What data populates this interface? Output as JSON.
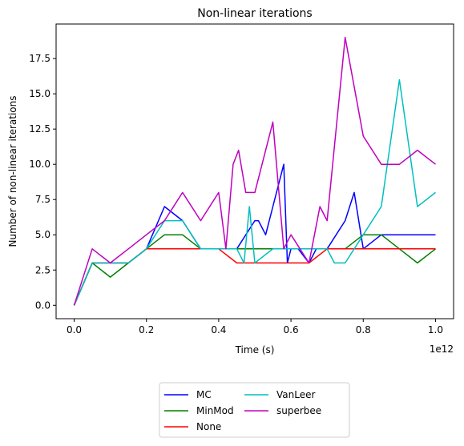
{
  "chart_data": {
    "type": "line",
    "title": "Non-linear iterations",
    "xlabel": "Time (s)",
    "ylabel": "Number of non-linear iterations",
    "x_offset_label": "1e12",
    "xlim": [
      -0.05,
      1.05
    ],
    "ylim": [
      -0.95,
      19.95
    ],
    "x_ticks": [
      0.0,
      0.2,
      0.4,
      0.6,
      0.8,
      1.0
    ],
    "x_tick_labels": [
      "0.0",
      "0.2",
      "0.4",
      "0.6",
      "0.8",
      "1.0"
    ],
    "y_ticks": [
      0,
      2.5,
      5,
      7.5,
      10,
      12.5,
      15,
      17.5
    ],
    "y_tick_labels": [
      "0.0",
      "2.5",
      "5.0",
      "7.5",
      "10.0",
      "12.5",
      "15.0",
      "17.5"
    ],
    "grid": false,
    "legend": {
      "placement": "below",
      "columns": 2
    },
    "series": [
      {
        "name": "MC",
        "color": "#0000ff",
        "x": [
          0,
          0.05,
          0.1,
          0.15,
          0.2,
          0.25,
          0.3,
          0.35,
          0.4,
          0.45,
          0.5,
          0.51,
          0.53,
          0.55,
          0.58,
          0.59,
          0.6,
          0.62,
          0.65,
          0.67,
          0.7,
          0.75,
          0.775,
          0.8,
          0.85,
          0.9,
          0.95,
          1.0
        ],
        "y": [
          0,
          3,
          3,
          3,
          4,
          7,
          6,
          4,
          4,
          4,
          6,
          6,
          5,
          7,
          10,
          3,
          4,
          4,
          3,
          4,
          4,
          6,
          8,
          4,
          5,
          5,
          5,
          5
        ]
      },
      {
        "name": "MinMod",
        "color": "#008000",
        "x": [
          0,
          0.05,
          0.1,
          0.15,
          0.2,
          0.25,
          0.3,
          0.35,
          0.4,
          0.45,
          0.5,
          0.55,
          0.6,
          0.65,
          0.7,
          0.75,
          0.8,
          0.85,
          0.9,
          0.95,
          1.0
        ],
        "y": [
          0,
          3,
          2,
          3,
          4,
          5,
          5,
          4,
          4,
          4,
          4,
          4,
          4,
          4,
          4,
          4,
          5,
          5,
          4,
          3,
          4
        ]
      },
      {
        "name": "None",
        "color": "#ff0000",
        "x": [
          0,
          0.05,
          0.1,
          0.15,
          0.2,
          0.25,
          0.3,
          0.35,
          0.4,
          0.45,
          0.5,
          0.55,
          0.6,
          0.65,
          0.7,
          0.75,
          0.8,
          0.85,
          0.9,
          0.95,
          1.0
        ],
        "y": [
          0,
          3,
          3,
          3,
          4,
          4,
          4,
          4,
          4,
          3,
          3,
          3,
          3,
          3,
          4,
          4,
          4,
          4,
          4,
          4,
          4
        ]
      },
      {
        "name": "VanLeer",
        "color": "#00bfbf",
        "x": [
          0,
          0.05,
          0.1,
          0.15,
          0.2,
          0.25,
          0.28,
          0.3,
          0.35,
          0.4,
          0.45,
          0.47,
          0.485,
          0.5,
          0.55,
          0.6,
          0.65,
          0.7,
          0.72,
          0.75,
          0.8,
          0.85,
          0.9,
          0.95,
          1.0
        ],
        "y": [
          0,
          3,
          3,
          3,
          4,
          6,
          6,
          6,
          4,
          4,
          4,
          3,
          7,
          3,
          4,
          4,
          4,
          4,
          3,
          3,
          5,
          7,
          16,
          7,
          8
        ]
      },
      {
        "name": "superbee",
        "color": "#bf00bf",
        "x": [
          0,
          0.05,
          0.1,
          0.15,
          0.2,
          0.25,
          0.3,
          0.35,
          0.4,
          0.42,
          0.44,
          0.455,
          0.475,
          0.5,
          0.55,
          0.58,
          0.6,
          0.65,
          0.68,
          0.7,
          0.75,
          0.8,
          0.85,
          0.9,
          0.95,
          1.0
        ],
        "y": [
          0,
          4,
          3,
          4,
          5,
          6,
          8,
          6,
          8,
          4,
          10,
          11,
          8,
          8,
          13,
          4,
          5,
          3,
          7,
          6,
          19,
          12,
          10,
          10,
          11,
          10
        ]
      }
    ]
  }
}
